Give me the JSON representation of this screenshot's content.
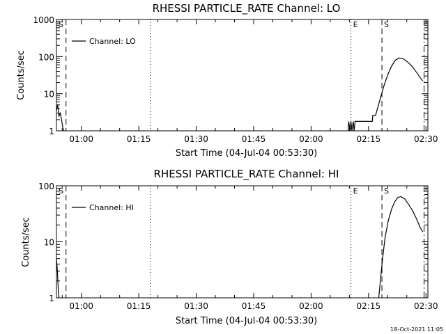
{
  "footer": {
    "timestamp": "18-Oct-2021 11:05"
  },
  "chart_data": [
    {
      "type": "line",
      "title": "RHESSI PARTICLE_RATE Channel: LO",
      "xlabel": "Start Time (04-Jul-04 00:53:30)",
      "ylabel": "Counts/sec",
      "y_scale": "log",
      "xlim": [
        0,
        5820
      ],
      "ylim": [
        1,
        1000
      ],
      "x_ticks": [
        {
          "x": 390,
          "label": "01:00"
        },
        {
          "x": 1290,
          "label": "01:15"
        },
        {
          "x": 2190,
          "label": "01:30"
        },
        {
          "x": 3090,
          "label": "01:45"
        },
        {
          "x": 3990,
          "label": "02:00"
        },
        {
          "x": 4890,
          "label": "02:15"
        },
        {
          "x": 5790,
          "label": "02:30"
        }
      ],
      "y_ticks": [
        {
          "y": 1,
          "label": "1"
        },
        {
          "y": 10,
          "label": "10"
        },
        {
          "y": 100,
          "label": "100"
        },
        {
          "y": 1000,
          "label": "1000"
        }
      ],
      "legend": {
        "position": "top-left",
        "entries": [
          "Channel: LO"
        ]
      },
      "series": [
        {
          "name": "Channel: LO",
          "segments": [
            [
              [
                0,
                3.5
              ],
              [
                20,
                5.0
              ],
              [
                40,
                2.5
              ],
              [
                60,
                3.0
              ],
              [
                80,
                2.0
              ],
              [
                100,
                1.2
              ],
              [
                115,
                1.0
              ]
            ],
            [
              [
                4570,
                1.0
              ],
              [
                4580,
                1.8
              ],
              [
                4600,
                1.0
              ],
              [
                4615,
                1.8
              ],
              [
                4630,
                1.0
              ],
              [
                4650,
                1.8
              ],
              [
                4665,
                1.0
              ],
              [
                4680,
                1.8
              ],
              [
                4950,
                1.8
              ],
              [
                4955,
                2.6
              ],
              [
                5000,
                2.6
              ],
              [
                5030,
                4
              ],
              [
                5080,
                8
              ],
              [
                5130,
                16
              ],
              [
                5190,
                32
              ],
              [
                5250,
                55
              ],
              [
                5310,
                80
              ],
              [
                5370,
                92
              ],
              [
                5430,
                88
              ],
              [
                5500,
                72
              ],
              [
                5570,
                55
              ],
              [
                5640,
                38
              ],
              [
                5700,
                27
              ],
              [
                5740,
                22
              ]
            ]
          ]
        }
      ],
      "markers": [
        {
          "x": 0,
          "label": "S",
          "style": "solid"
        },
        {
          "x": 150,
          "label": "",
          "style": "dashed"
        },
        {
          "x": 1470,
          "label": "",
          "style": "dotted"
        },
        {
          "x": 4615,
          "label": "E",
          "style": "dotted"
        },
        {
          "x": 5100,
          "label": "S",
          "style": "dashed"
        },
        {
          "x": 5760,
          "label": "",
          "style": "dashdot"
        }
      ]
    },
    {
      "type": "line",
      "title": "RHESSI PARTICLE_RATE Channel: HI",
      "xlabel": "Start Time (04-Jul-04 00:53:30)",
      "ylabel": "Counts/sec",
      "y_scale": "log",
      "xlim": [
        0,
        5820
      ],
      "ylim": [
        1,
        100
      ],
      "x_ticks": [
        {
          "x": 390,
          "label": "01:00"
        },
        {
          "x": 1290,
          "label": "01:15"
        },
        {
          "x": 2190,
          "label": "01:30"
        },
        {
          "x": 3090,
          "label": "01:45"
        },
        {
          "x": 3990,
          "label": "02:00"
        },
        {
          "x": 4890,
          "label": "02:15"
        },
        {
          "x": 5790,
          "label": "02:30"
        }
      ],
      "y_ticks": [
        {
          "y": 1,
          "label": "1"
        },
        {
          "y": 10,
          "label": "10"
        },
        {
          "y": 100,
          "label": "100"
        }
      ],
      "legend": {
        "position": "top-left",
        "entries": [
          "Channel: HI"
        ]
      },
      "series": [
        {
          "name": "Channel: HI",
          "segments": [
            [
              [
                0,
                5.0
              ],
              [
                15,
                3.0
              ],
              [
                30,
                1.3
              ],
              [
                40,
                1.0
              ]
            ],
            [
              [
                5050,
                1.0
              ],
              [
                5075,
                2.0
              ],
              [
                5110,
                5
              ],
              [
                5150,
                12
              ],
              [
                5200,
                24
              ],
              [
                5250,
                38
              ],
              [
                5300,
                52
              ],
              [
                5350,
                62
              ],
              [
                5400,
                64
              ],
              [
                5460,
                58
              ],
              [
                5520,
                46
              ],
              [
                5580,
                36
              ],
              [
                5640,
                26
              ],
              [
                5700,
                18
              ],
              [
                5740,
                15
              ]
            ]
          ]
        }
      ],
      "markers": [
        {
          "x": 0,
          "label": "S",
          "style": "solid"
        },
        {
          "x": 150,
          "label": "",
          "style": "dashed"
        },
        {
          "x": 1470,
          "label": "",
          "style": "dotted"
        },
        {
          "x": 4615,
          "label": "E",
          "style": "dotted"
        },
        {
          "x": 5100,
          "label": "S",
          "style": "dashed"
        },
        {
          "x": 5760,
          "label": "",
          "style": "dashdot"
        }
      ]
    }
  ]
}
